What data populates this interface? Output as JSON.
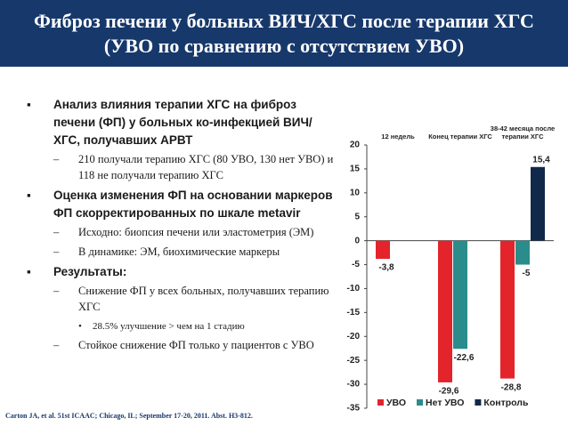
{
  "header": {
    "title": "Фиброз печени у больных ВИЧ/ХГС после терапии ХГС (УВО по сравнению с отсутствием УВО)"
  },
  "bullets": [
    {
      "text": "Анализ влияния терапии ХГС на фиброз печени (ФП) у больных ко-инфекцией ВИЧ/ХГС, получавших АРВТ",
      "items": [
        {
          "text": "210  получали терапию ХГС (80 УВО, 130 нет УВО) и 118 не получали терапию ХГС"
        }
      ]
    },
    {
      "text": "Оценка изменения ФП на основании маркеров ФП скорректированных по шкале metavir",
      "items": [
        {
          "text": "Исходно: биопсия печени или эластометрия (ЭМ)"
        },
        {
          "text": "В динамике: ЭМ, биохимические маркеры"
        }
      ]
    },
    {
      "text": "Результаты:",
      "items": [
        {
          "text": "Снижение ФП у всех больных, получавших терапию ХГС",
          "items": [
            {
              "text": "28.5%  улучшение > чем на 1 стадию"
            }
          ]
        },
        {
          "text": "Стойкое снижение ФП только у пациентов с УВО"
        }
      ]
    }
  ],
  "citation": "Carton JA, et al. 51st ICAAC; Chicago, IL; September 17-20, 2011. Abst. H3-812.",
  "chart_data": {
    "type": "bar",
    "categories": [
      "12 недель",
      "Конец терапии ХГС",
      "38-42  месяца после терапии ХГС"
    ],
    "series": [
      {
        "name": "УВО",
        "color": "#e3242b",
        "values": [
          -3.8,
          -29.6,
          -28.8
        ],
        "value_labels": [
          "-3,8",
          "-29,6",
          "-28,8"
        ]
      },
      {
        "name": "Нет УВО",
        "color": "#2b8c8c",
        "values": [
          null,
          -22.6,
          -5
        ],
        "value_labels": [
          null,
          "-22,6",
          "-5"
        ]
      },
      {
        "name": "Контроль",
        "color": "#10294a",
        "values": [
          null,
          null,
          15.4
        ],
        "value_labels": [
          null,
          null,
          "15,4"
        ]
      }
    ],
    "ylim": [
      -35,
      20
    ],
    "yticks": [
      20,
      15,
      10,
      5,
      0,
      -5,
      -10,
      -15,
      -20,
      -25,
      -30,
      -35
    ],
    "grid": false
  }
}
